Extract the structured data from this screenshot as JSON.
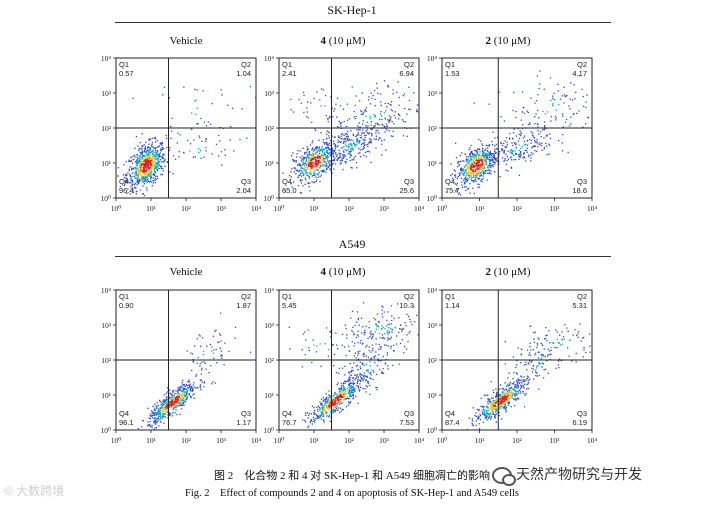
{
  "sections": [
    {
      "title": "SK-Hep-1"
    },
    {
      "title": "A549"
    }
  ],
  "column_heads": [
    {
      "bold": "",
      "text": "Vehicle"
    },
    {
      "bold": "4",
      "text": " (10 μM)"
    },
    {
      "bold": "2",
      "text": " (10 μM)"
    }
  ],
  "tick_labels": {
    "x": [
      "10⁰",
      "10¹",
      "10²",
      "10³",
      "10⁴"
    ],
    "y": [
      "10⁰",
      "10¹",
      "10²",
      "10³",
      "10⁴"
    ]
  },
  "quadrant_names": [
    "Q1",
    "Q2",
    "Q3",
    "Q4"
  ],
  "chart_data": [
    {
      "type": "scatter",
      "section": "SK-Hep-1",
      "treatment": "Vehicle",
      "xlim": [
        1,
        10000
      ],
      "ylim": [
        1,
        10000
      ],
      "scale": "log",
      "quadrants": {
        "Q1": "0.57",
        "Q2": "1.04",
        "Q3": "2.04",
        "Q4": "96.4"
      }
    },
    {
      "type": "scatter",
      "section": "SK-Hep-1",
      "treatment": "4 (10 μM)",
      "xlim": [
        1,
        10000
      ],
      "ylim": [
        1,
        10000
      ],
      "scale": "log",
      "quadrants": {
        "Q1": "2.41",
        "Q2": "6.94",
        "Q3": "25.6",
        "Q4": "65.0"
      }
    },
    {
      "type": "scatter",
      "section": "SK-Hep-1",
      "treatment": "2 (10 μM)",
      "xlim": [
        1,
        10000
      ],
      "ylim": [
        1,
        10000
      ],
      "scale": "log",
      "quadrants": {
        "Q1": "1.53",
        "Q2": "4.17",
        "Q3": "18.6",
        "Q4": "75.7"
      }
    },
    {
      "type": "scatter",
      "section": "A549",
      "treatment": "Vehicle",
      "xlim": [
        1,
        10000
      ],
      "ylim": [
        1,
        10000
      ],
      "scale": "log",
      "quadrants": {
        "Q1": "0.90",
        "Q2": "1.87",
        "Q3": "1.17",
        "Q4": "96.1"
      }
    },
    {
      "type": "scatter",
      "section": "A549",
      "treatment": "4 (10 μM)",
      "xlim": [
        1,
        10000
      ],
      "ylim": [
        1,
        10000
      ],
      "scale": "log",
      "quadrants": {
        "Q1": "5.45",
        "Q2": "10.3",
        "Q3": "7.53",
        "Q4": "76.7"
      }
    },
    {
      "type": "scatter",
      "section": "A549",
      "treatment": "2 (10 μM)",
      "xlim": [
        1,
        10000
      ],
      "ylim": [
        1,
        10000
      ],
      "scale": "log",
      "quadrants": {
        "Q1": "1.14",
        "Q2": "5.31",
        "Q3": "6.19",
        "Q4": "87.4"
      }
    }
  ],
  "caption": {
    "cn": "图 2　化合物 2 和 4 对 SK-Hep-1 和 A549 细胞凋亡的影响",
    "en": "Fig. 2　Effect of compounds 2 and 4 on apoptosis of SK-Hep-1 and A549 cells"
  },
  "watermarks": {
    "left": "© 大数跨境",
    "right": "天然产物研究与开发"
  },
  "colors": {
    "dots_low": "#2a4bd7",
    "dots_mid": "#00b0c8",
    "dots_high": "#f0c020",
    "dots_peak": "#e02020",
    "axes": "#222222"
  }
}
